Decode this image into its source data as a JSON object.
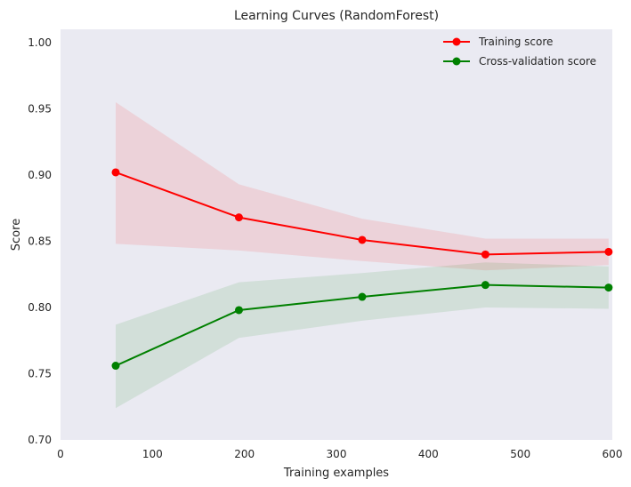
{
  "chart_data": {
    "type": "line",
    "title": "Learning Curves (RandomForest)",
    "xlabel": "Training examples",
    "ylabel": "Score",
    "xlim": [
      0,
      600
    ],
    "ylim": [
      0.7,
      1.01
    ],
    "xticks": [
      0,
      100,
      200,
      300,
      400,
      500,
      600
    ],
    "xtick_labels": [
      "0",
      "100",
      "200",
      "300",
      "400",
      "500",
      "600"
    ],
    "yticks": [
      0.7,
      0.75,
      0.8,
      0.85,
      0.9,
      0.95,
      1.0
    ],
    "ytick_labels": [
      "0.70",
      "0.75",
      "0.80",
      "0.85",
      "0.90",
      "0.95",
      "1.00"
    ],
    "grid": false,
    "legend_position": "top-right",
    "background_color": "#eaeaf2",
    "x": [
      60,
      194,
      328,
      462,
      596
    ],
    "series": [
      {
        "name": "Training score",
        "color": "#ff0000",
        "fill_color": "#ff0000",
        "values": [
          0.902,
          0.868,
          0.851,
          0.84,
          0.842
        ],
        "upper": [
          0.955,
          0.893,
          0.867,
          0.852,
          0.852
        ],
        "lower": [
          0.848,
          0.843,
          0.835,
          0.828,
          0.832
        ]
      },
      {
        "name": "Cross-validation score",
        "color": "#008000",
        "fill_color": "#008000",
        "values": [
          0.756,
          0.798,
          0.808,
          0.817,
          0.815
        ],
        "upper": [
          0.787,
          0.819,
          0.826,
          0.834,
          0.831
        ],
        "lower": [
          0.724,
          0.777,
          0.79,
          0.8,
          0.799
        ]
      }
    ]
  }
}
